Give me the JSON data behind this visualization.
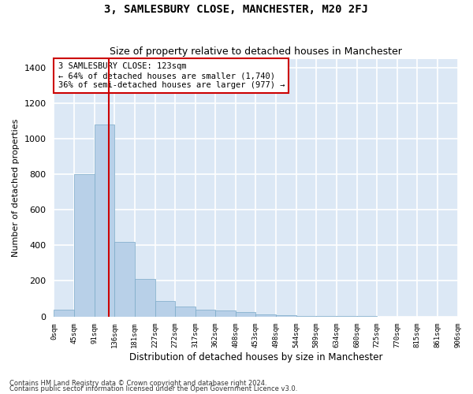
{
  "title": "3, SAMLESBURY CLOSE, MANCHESTER, M20 2FJ",
  "subtitle": "Size of property relative to detached houses in Manchester",
  "xlabel": "Distribution of detached houses by size in Manchester",
  "ylabel": "Number of detached properties",
  "bar_color": "#b8d0e8",
  "bar_edge_color": "#7aaac8",
  "background_color": "#dce8f5",
  "grid_color": "#ffffff",
  "vline_value": 123,
  "vline_color": "#cc0000",
  "bin_edges": [
    0,
    45,
    91,
    136,
    181,
    227,
    272,
    317,
    362,
    408,
    453,
    498,
    544,
    589,
    634,
    680,
    725,
    770,
    815,
    861,
    906
  ],
  "bar_heights": [
    40,
    800,
    1080,
    420,
    210,
    85,
    55,
    40,
    35,
    25,
    10,
    5,
    3,
    2,
    1,
    1,
    0,
    0,
    0,
    0
  ],
  "annotation_text": "3 SAMLESBURY CLOSE: 123sqm\n← 64% of detached houses are smaller (1,740)\n36% of semi-detached houses are larger (977) →",
  "annotation_box_color": "#ffffff",
  "annotation_box_edge": "#cc0000",
  "footnote1": "Contains HM Land Registry data © Crown copyright and database right 2024.",
  "footnote2": "Contains public sector information licensed under the Open Government Licence v3.0.",
  "ylim": [
    0,
    1450
  ],
  "yticks": [
    0,
    200,
    400,
    600,
    800,
    1000,
    1200,
    1400
  ],
  "figsize": [
    6.0,
    5.0
  ],
  "dpi": 100
}
